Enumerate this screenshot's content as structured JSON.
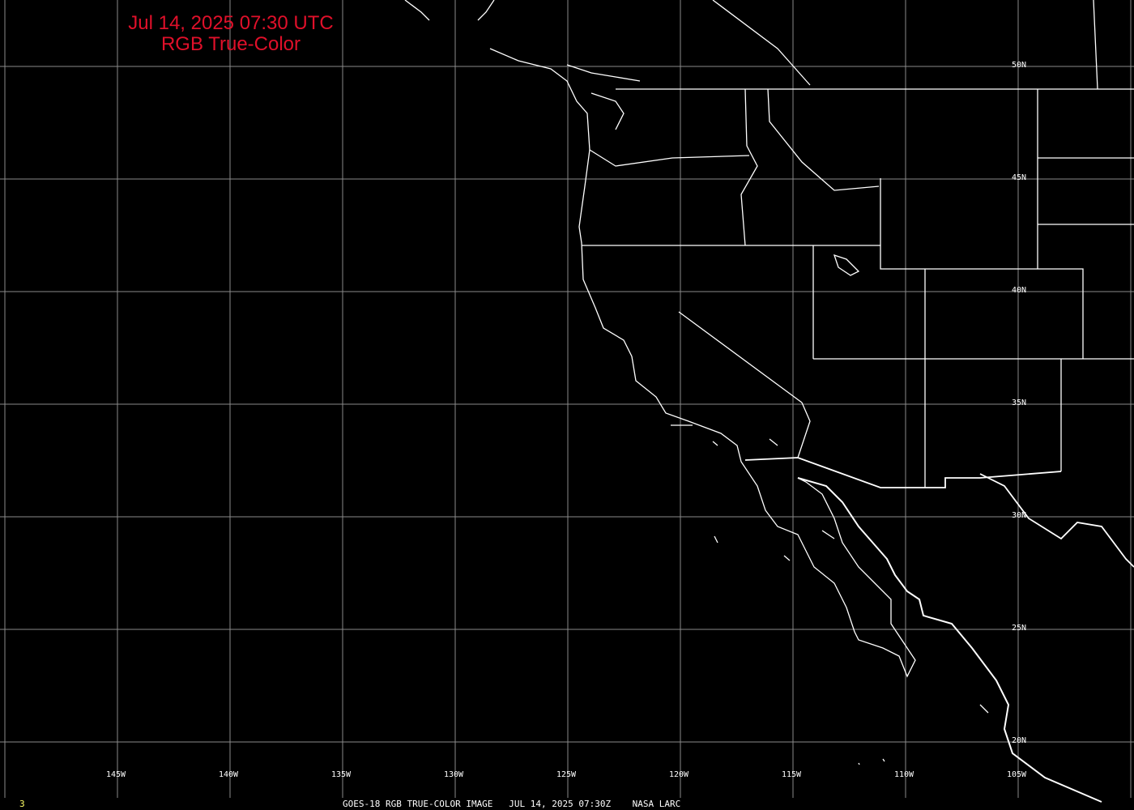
{
  "title": {
    "line1": "Jul 14, 2025 07:30 UTC",
    "line2": "RGB True-Color"
  },
  "caption": "GOES-18 RGB TRUE-COLOR IMAGE   JUL 14, 2025 07:30Z    NASA LARC",
  "frame_number": "3",
  "lon_labels": [
    "145W",
    "140W",
    "135W",
    "130W",
    "125W",
    "120W",
    "115W",
    "110W",
    "105W"
  ],
  "lat_labels": [
    "50N",
    "45N",
    "40N",
    "35N",
    "30N",
    "25N",
    "20N"
  ],
  "colors": {
    "background": "#000000",
    "title": "#e0102a",
    "grid": "#8a8a8a",
    "boundaries": "#ffffff",
    "frame_number": "#ffff66"
  }
}
